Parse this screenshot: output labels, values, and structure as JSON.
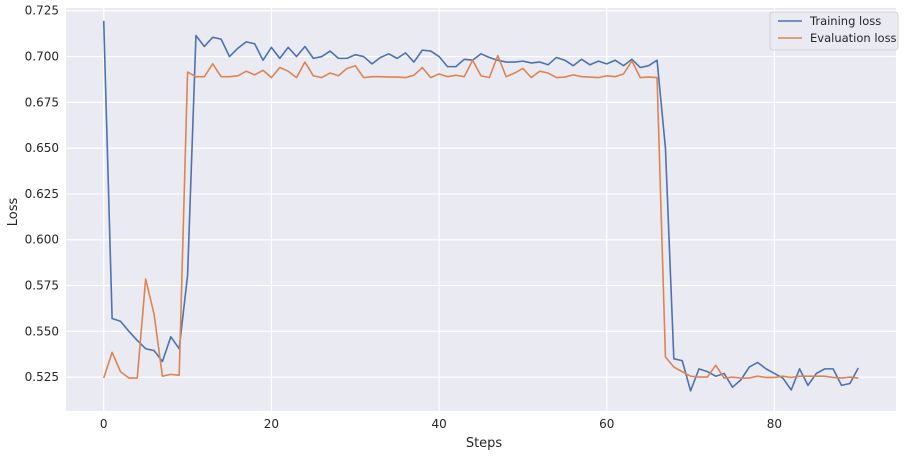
{
  "chart_data": {
    "type": "line",
    "title": "",
    "xlabel": "Steps",
    "ylabel": "Loss",
    "xlim": [
      -4.5,
      94.5
    ],
    "ylim": [
      0.5065,
      0.7265
    ],
    "xticks": [
      0,
      20,
      40,
      60,
      80
    ],
    "xtick_labels": [
      "0",
      "20",
      "40",
      "60",
      "80"
    ],
    "yticks": [
      0.525,
      0.55,
      0.575,
      0.6,
      0.625,
      0.65,
      0.675,
      0.7,
      0.725
    ],
    "ytick_labels": [
      "0.525",
      "0.550",
      "0.575",
      "0.600",
      "0.625",
      "0.650",
      "0.675",
      "0.700",
      "0.725"
    ],
    "grid": true,
    "legend_position": "top-right",
    "x": [
      0,
      1,
      2,
      3,
      4,
      5,
      6,
      7,
      8,
      9,
      10,
      11,
      12,
      13,
      14,
      15,
      16,
      17,
      18,
      19,
      20,
      21,
      22,
      23,
      24,
      25,
      26,
      27,
      28,
      29,
      30,
      31,
      32,
      33,
      34,
      35,
      36,
      37,
      38,
      39,
      40,
      41,
      42,
      43,
      44,
      45,
      46,
      47,
      48,
      49,
      50,
      51,
      52,
      53,
      54,
      55,
      56,
      57,
      58,
      59,
      60,
      61,
      62,
      63,
      64,
      65,
      66,
      67,
      68,
      69,
      70,
      71,
      72,
      73,
      74,
      75,
      76,
      77,
      78,
      79,
      80,
      81,
      82,
      83,
      84,
      85,
      86,
      87,
      88,
      89,
      90
    ],
    "series": [
      {
        "name": "Training loss",
        "color": "#4c72b0",
        "values": [
          0.7195,
          0.557,
          0.5555,
          0.55,
          0.545,
          0.5405,
          0.5395,
          0.5335,
          0.547,
          0.5405,
          0.5805,
          0.7115,
          0.7055,
          0.7105,
          0.7095,
          0.7,
          0.7045,
          0.708,
          0.707,
          0.698,
          0.705,
          0.699,
          0.705,
          0.7,
          0.7055,
          0.699,
          0.7,
          0.703,
          0.699,
          0.699,
          0.701,
          0.7,
          0.696,
          0.6995,
          0.7015,
          0.699,
          0.702,
          0.697,
          0.7035,
          0.703,
          0.7,
          0.6945,
          0.6945,
          0.6985,
          0.698,
          0.7015,
          0.6995,
          0.698,
          0.697,
          0.697,
          0.6975,
          0.6965,
          0.697,
          0.6955,
          0.6995,
          0.698,
          0.695,
          0.6985,
          0.6955,
          0.6975,
          0.696,
          0.698,
          0.695,
          0.6985,
          0.694,
          0.695,
          0.698,
          0.65,
          0.535,
          0.534,
          0.5175,
          0.5295,
          0.528,
          0.5255,
          0.527,
          0.5195,
          0.5235,
          0.5305,
          0.533,
          0.5295,
          0.527,
          0.5245,
          0.518,
          0.5295,
          0.5205,
          0.527,
          0.5295,
          0.5295,
          0.5205,
          0.5215,
          0.53
        ]
      },
      {
        "name": "Evaluation loss",
        "color": "#dd8452",
        "values": [
          0.5245,
          0.5385,
          0.528,
          0.5245,
          0.5245,
          0.5785,
          0.5595,
          0.5255,
          0.5265,
          0.526,
          0.6915,
          0.689,
          0.689,
          0.696,
          0.689,
          0.689,
          0.6895,
          0.692,
          0.69,
          0.6925,
          0.6885,
          0.694,
          0.692,
          0.6885,
          0.697,
          0.6895,
          0.6885,
          0.691,
          0.6895,
          0.6935,
          0.695,
          0.6885,
          0.689,
          0.689,
          0.6888,
          0.6888,
          0.6885,
          0.6898,
          0.694,
          0.6885,
          0.6905,
          0.689,
          0.6898,
          0.689,
          0.698,
          0.6895,
          0.6885,
          0.7005,
          0.689,
          0.691,
          0.6935,
          0.6885,
          0.692,
          0.691,
          0.6885,
          0.6888,
          0.69,
          0.689,
          0.6888,
          0.6885,
          0.6895,
          0.689,
          0.6905,
          0.6975,
          0.6885,
          0.6888,
          0.6885,
          0.536,
          0.5305,
          0.528,
          0.5255,
          0.525,
          0.525,
          0.5315,
          0.5245,
          0.525,
          0.5245,
          0.5245,
          0.5255,
          0.5248,
          0.5248,
          0.5255,
          0.5248,
          0.5255,
          0.5255,
          0.5255,
          0.5255,
          0.5248,
          0.5245,
          0.525,
          0.5245
        ]
      }
    ]
  }
}
